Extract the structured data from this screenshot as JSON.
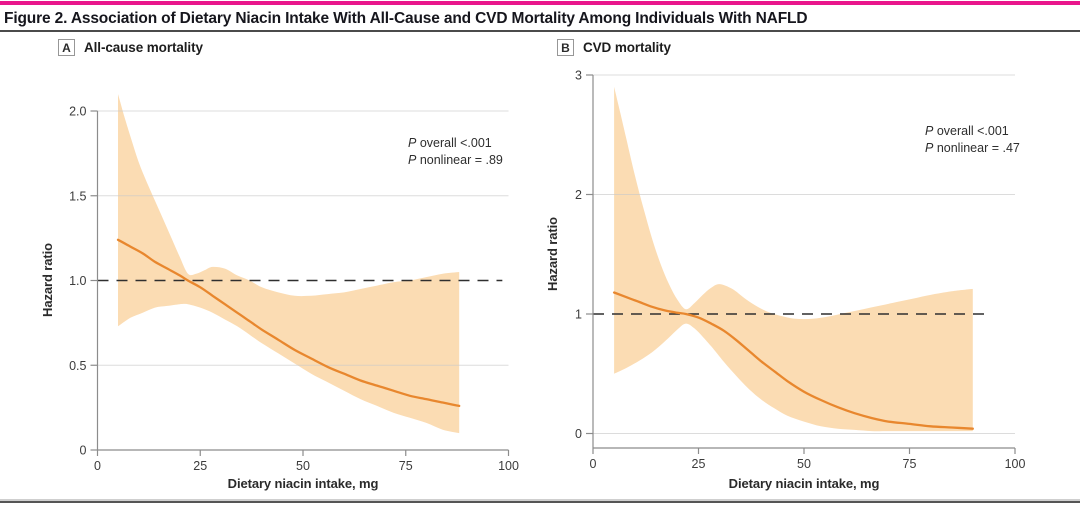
{
  "figure": {
    "title": "Figure 2. Association of Dietary Niacin Intake With All-Cause and CVD Mortality Among Individuals With NAFLD",
    "accent_color": "#E9168C"
  },
  "panels": [
    {
      "key": "A",
      "label": "All-cause mortality"
    },
    {
      "key": "B",
      "label": "CVD mortality"
    }
  ],
  "chart_data": [
    {
      "type": "line",
      "panel": "A",
      "title": "All-cause mortality",
      "xlabel": "Dietary niacin intake, mg",
      "ylabel": "Hazard ratio",
      "xlim": [
        0,
        100
      ],
      "ylim": [
        0,
        2.1
      ],
      "xticks": [
        {
          "v": 0,
          "label": "0"
        },
        {
          "v": 25,
          "label": "25"
        },
        {
          "v": 50,
          "label": "50"
        },
        {
          "v": 75,
          "label": "75"
        },
        {
          "v": 100,
          "label": "100"
        }
      ],
      "yticks": [
        {
          "v": 0,
          "label": "0"
        },
        {
          "v": 0.5,
          "label": "0.5"
        },
        {
          "v": 1,
          "label": "1.0"
        },
        {
          "v": 1.5,
          "label": "1.5"
        },
        {
          "v": 2,
          "label": "2.0"
        }
      ],
      "grid_y": [
        0.5,
        1.5,
        2
      ],
      "refline_y": 1.0,
      "refline_x_end": 98.5,
      "annotations": [
        "P overall <.001",
        "P nonlinear = .89"
      ],
      "band_color": "#FBDCB3",
      "series": [
        {
          "name": "hazard_ratio",
          "color": "#E8872E",
          "points": [
            [
              5,
              1.24
            ],
            [
              8,
              1.2
            ],
            [
              11,
              1.16
            ],
            [
              14,
              1.11
            ],
            [
              17,
              1.07
            ],
            [
              20,
              1.03
            ],
            [
              22,
              1.0
            ],
            [
              25,
              0.96
            ],
            [
              28,
              0.91
            ],
            [
              31,
              0.86
            ],
            [
              34,
              0.81
            ],
            [
              37,
              0.76
            ],
            [
              40,
              0.71
            ],
            [
              44,
              0.65
            ],
            [
              48,
              0.59
            ],
            [
              52,
              0.54
            ],
            [
              56,
              0.49
            ],
            [
              60,
              0.45
            ],
            [
              64,
              0.41
            ],
            [
              68,
              0.38
            ],
            [
              72,
              0.35
            ],
            [
              76,
              0.32
            ],
            [
              80,
              0.3
            ],
            [
              84,
              0.28
            ],
            [
              88,
              0.26
            ]
          ]
        },
        {
          "name": "ci_upper",
          "points": [
            [
              5,
              2.1
            ],
            [
              6.5,
              1.97
            ],
            [
              8,
              1.85
            ],
            [
              10,
              1.7
            ],
            [
              12,
              1.58
            ],
            [
              14,
              1.47
            ],
            [
              16,
              1.36
            ],
            [
              18,
              1.25
            ],
            [
              20,
              1.14
            ],
            [
              22,
              1.04
            ],
            [
              24,
              1.04
            ],
            [
              26,
              1.06
            ],
            [
              28,
              1.08
            ],
            [
              31,
              1.07
            ],
            [
              34,
              1.03
            ],
            [
              37,
              1.0
            ],
            [
              40,
              0.96
            ],
            [
              44,
              0.93
            ],
            [
              48,
              0.91
            ],
            [
              52,
              0.91
            ],
            [
              56,
              0.92
            ],
            [
              60,
              0.93
            ],
            [
              64,
              0.95
            ],
            [
              68,
              0.97
            ],
            [
              72,
              0.99
            ],
            [
              76,
              1.0
            ],
            [
              80,
              1.02
            ],
            [
              84,
              1.04
            ],
            [
              88,
              1.05
            ]
          ]
        },
        {
          "name": "ci_lower",
          "points": [
            [
              5,
              0.73
            ],
            [
              8,
              0.78
            ],
            [
              11,
              0.81
            ],
            [
              14,
              0.84
            ],
            [
              17,
              0.85
            ],
            [
              20,
              0.86
            ],
            [
              22,
              0.86
            ],
            [
              25,
              0.84
            ],
            [
              28,
              0.81
            ],
            [
              31,
              0.77
            ],
            [
              34,
              0.73
            ],
            [
              37,
              0.68
            ],
            [
              40,
              0.63
            ],
            [
              44,
              0.57
            ],
            [
              48,
              0.51
            ],
            [
              52,
              0.45
            ],
            [
              56,
              0.4
            ],
            [
              60,
              0.35
            ],
            [
              64,
              0.3
            ],
            [
              68,
              0.26
            ],
            [
              72,
              0.22
            ],
            [
              76,
              0.19
            ],
            [
              80,
              0.16
            ],
            [
              84,
              0.12
            ],
            [
              88,
              0.1
            ]
          ]
        }
      ]
    },
    {
      "type": "line",
      "panel": "B",
      "title": "CVD mortality",
      "xlabel": "Dietary niacin intake, mg",
      "ylabel": "Hazard ratio",
      "xlim": [
        0,
        100
      ],
      "ylim": [
        0,
        3
      ],
      "xticks": [
        {
          "v": 0,
          "label": "0"
        },
        {
          "v": 25,
          "label": "25"
        },
        {
          "v": 50,
          "label": "50"
        },
        {
          "v": 75,
          "label": "75"
        },
        {
          "v": 100,
          "label": "100"
        }
      ],
      "yticks": [
        {
          "v": 0,
          "label": "0"
        },
        {
          "v": 1,
          "label": "1"
        },
        {
          "v": 2,
          "label": "2"
        },
        {
          "v": 3,
          "label": "3"
        }
      ],
      "grid_y": [
        0,
        2,
        3
      ],
      "refline_y": 1.0,
      "refline_x_end": 94,
      "annotations": [
        "P overall <.001",
        "P nonlinear = .47"
      ],
      "band_color": "#FBDCB3",
      "series": [
        {
          "name": "hazard_ratio",
          "color": "#E8872E",
          "points": [
            [
              5,
              1.18
            ],
            [
              8,
              1.14
            ],
            [
              11,
              1.1
            ],
            [
              14,
              1.06
            ],
            [
              17,
              1.03
            ],
            [
              20,
              1.01
            ],
            [
              22,
              1.0
            ],
            [
              25,
              0.97
            ],
            [
              28,
              0.92
            ],
            [
              31,
              0.86
            ],
            [
              34,
              0.78
            ],
            [
              37,
              0.69
            ],
            [
              40,
              0.6
            ],
            [
              43,
              0.52
            ],
            [
              46,
              0.44
            ],
            [
              50,
              0.35
            ],
            [
              54,
              0.28
            ],
            [
              58,
              0.22
            ],
            [
              62,
              0.17
            ],
            [
              66,
              0.13
            ],
            [
              70,
              0.1
            ],
            [
              75,
              0.08
            ],
            [
              80,
              0.06
            ],
            [
              85,
              0.05
            ],
            [
              90,
              0.04
            ]
          ]
        },
        {
          "name": "ci_upper",
          "points": [
            [
              5,
              2.9
            ],
            [
              6.5,
              2.68
            ],
            [
              8,
              2.45
            ],
            [
              10,
              2.15
            ],
            [
              12,
              1.88
            ],
            [
              14,
              1.63
            ],
            [
              16,
              1.42
            ],
            [
              18,
              1.25
            ],
            [
              20,
              1.12
            ],
            [
              22,
              1.04
            ],
            [
              24,
              1.09
            ],
            [
              26,
              1.16
            ],
            [
              28,
              1.22
            ],
            [
              30,
              1.25
            ],
            [
              33,
              1.21
            ],
            [
              36,
              1.13
            ],
            [
              39,
              1.06
            ],
            [
              42,
              1.01
            ],
            [
              45,
              0.98
            ],
            [
              48,
              0.96
            ],
            [
              52,
              0.96
            ],
            [
              56,
              0.98
            ],
            [
              60,
              1.01
            ],
            [
              64,
              1.04
            ],
            [
              68,
              1.07
            ],
            [
              72,
              1.1
            ],
            [
              76,
              1.13
            ],
            [
              80,
              1.16
            ],
            [
              85,
              1.19
            ],
            [
              90,
              1.21
            ]
          ]
        },
        {
          "name": "ci_lower",
          "points": [
            [
              5,
              0.5
            ],
            [
              8,
              0.55
            ],
            [
              11,
              0.61
            ],
            [
              14,
              0.68
            ],
            [
              17,
              0.77
            ],
            [
              20,
              0.87
            ],
            [
              22,
              0.92
            ],
            [
              24,
              0.88
            ],
            [
              26,
              0.81
            ],
            [
              28,
              0.73
            ],
            [
              31,
              0.6
            ],
            [
              34,
              0.48
            ],
            [
              37,
              0.37
            ],
            [
              40,
              0.28
            ],
            [
              43,
              0.21
            ],
            [
              46,
              0.15
            ],
            [
              50,
              0.1
            ],
            [
              54,
              0.06
            ],
            [
              58,
              0.04
            ],
            [
              62,
              0.03
            ],
            [
              66,
              0.02
            ],
            [
              70,
              0.02
            ],
            [
              75,
              0.02
            ],
            [
              80,
              0.02
            ],
            [
              85,
              0.02
            ],
            [
              90,
              0.02
            ]
          ]
        }
      ]
    }
  ]
}
